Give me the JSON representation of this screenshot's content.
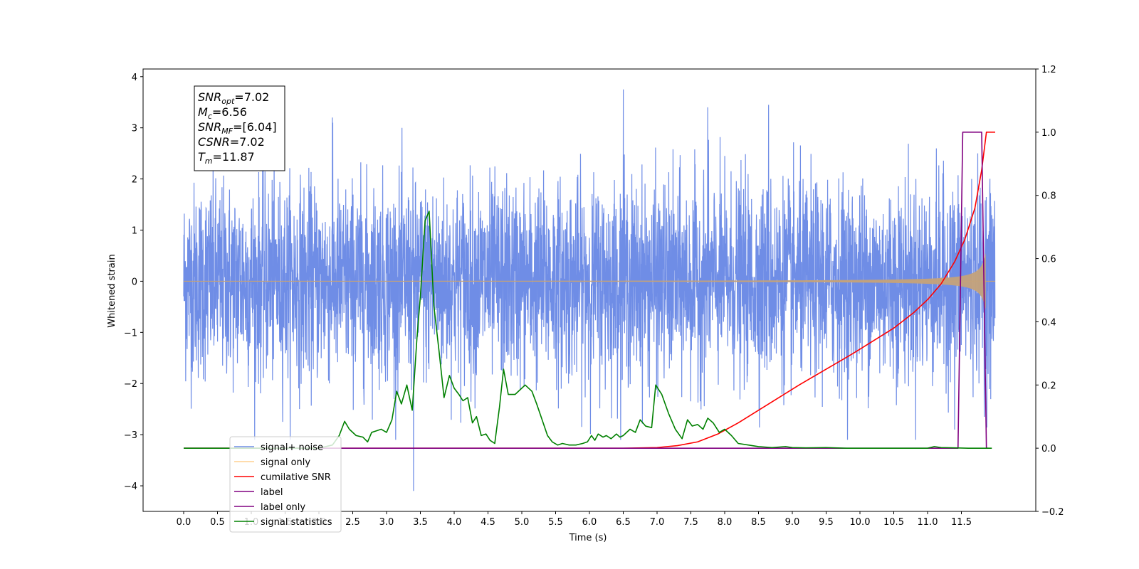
{
  "chart_data": {
    "type": "line",
    "xlabel": "Time (s)",
    "ylabel": "Whitened strain",
    "xlim": [
      -0.6,
      12.6
    ],
    "ylim": [
      -4.5,
      4.15
    ],
    "y2lim": [
      -0.2,
      1.2
    ],
    "x_ticks": [
      "0.0",
      "0.5",
      "1.0",
      "1.5",
      "2.0",
      "2.5",
      "3.0",
      "3.5",
      "4.0",
      "4.5",
      "5.0",
      "5.5",
      "6.0",
      "6.5",
      "7.0",
      "7.5",
      "8.0",
      "8.5",
      "9.0",
      "9.5",
      "10.0",
      "10.5",
      "11.0",
      "11.5"
    ],
    "y_ticks": [
      "4",
      "3",
      "2",
      "1",
      "0",
      "−1",
      "−2",
      "−3",
      "−4"
    ],
    "y2_ticks": [
      "1.2",
      "1.0",
      "0.8",
      "0.6",
      "0.4",
      "0.2",
      "0.0",
      "−0.2"
    ],
    "grid": false,
    "legend_position": "lower-left",
    "info_box": {
      "lines": [
        {
          "sym": "SNR",
          "sub": "opt",
          "rest": "=7.02"
        },
        {
          "sym": "M",
          "sub": "c",
          "rest": "=6.56"
        },
        {
          "sym": "SNR",
          "sub": "MF",
          "rest": "=[6.04]"
        },
        {
          "sym": "CSNR",
          "sub": "",
          "rest": "=7.02"
        },
        {
          "sym": "T",
          "sub": "m",
          "rest": "=11.87"
        }
      ]
    },
    "series": [
      {
        "name": "signal+ noise",
        "axis": "left",
        "color": "#6f8de6",
        "kind": "noise",
        "x_range": [
          0.0,
          12.0
        ],
        "sample_spacing": 0.003,
        "sigma": 0.95,
        "peaks": [
          [
            3.4,
            -4.1
          ],
          [
            6.5,
            3.75
          ],
          [
            8.65,
            3.45
          ],
          [
            2.2,
            3.2
          ],
          [
            7.75,
            3.4
          ],
          [
            11.4,
            -2.9
          ]
        ]
      },
      {
        "name": "signal only",
        "axis": "left",
        "color": "#c4a27a",
        "kind": "chirp",
        "x_range": [
          0.0,
          11.87
        ],
        "amplitude_end": 0.55
      },
      {
        "name": "cumilative SNR",
        "axis": "right",
        "color": "#ff0000",
        "x": [
          0.0,
          6.5,
          7.0,
          7.3,
          7.6,
          7.9,
          8.2,
          8.5,
          8.8,
          9.1,
          9.5,
          9.9,
          10.2,
          10.5,
          10.8,
          11.0,
          11.2,
          11.4,
          11.55,
          11.7,
          11.8,
          11.87,
          12.0
        ],
        "y": [
          0.0,
          0.0,
          0.002,
          0.008,
          0.02,
          0.045,
          0.08,
          0.12,
          0.16,
          0.2,
          0.25,
          0.3,
          0.34,
          0.38,
          0.43,
          0.47,
          0.52,
          0.59,
          0.66,
          0.76,
          0.88,
          1.0,
          1.0
        ]
      },
      {
        "name": "label",
        "axis": "right",
        "color": "#800080",
        "x": [
          0.0,
          11.45,
          11.52,
          11.8,
          11.87,
          11.9
        ],
        "y": [
          0.0,
          0.0,
          1.0,
          1.0,
          0.0,
          0.0
        ]
      },
      {
        "name": "label only",
        "axis": "right",
        "color": "#800080",
        "x": [],
        "y": []
      },
      {
        "name": "signal statistics",
        "axis": "right",
        "color": "#008000",
        "x": [
          0.0,
          2.0,
          2.2,
          2.3,
          2.38,
          2.45,
          2.55,
          2.65,
          2.72,
          2.78,
          2.85,
          2.92,
          3.0,
          3.08,
          3.15,
          3.22,
          3.3,
          3.38,
          3.45,
          3.5,
          3.57,
          3.63,
          3.7,
          3.78,
          3.85,
          3.93,
          4.0,
          4.07,
          4.13,
          4.2,
          4.27,
          4.33,
          4.4,
          4.47,
          4.53,
          4.6,
          4.67,
          4.73,
          4.8,
          4.9,
          5.0,
          5.05,
          5.15,
          5.22,
          5.3,
          5.38,
          5.45,
          5.53,
          5.6,
          5.7,
          5.8,
          5.9,
          5.97,
          6.03,
          6.08,
          6.13,
          6.2,
          6.25,
          6.32,
          6.4,
          6.45,
          6.5,
          6.6,
          6.68,
          6.75,
          6.83,
          6.92,
          6.98,
          7.07,
          7.17,
          7.27,
          7.37,
          7.45,
          7.52,
          7.6,
          7.68,
          7.75,
          7.83,
          7.92,
          8.0,
          8.1,
          8.2,
          8.35,
          8.5,
          8.7,
          8.9,
          9.0,
          9.2,
          9.5,
          9.8,
          10.0,
          10.5,
          11.0,
          11.1,
          11.2,
          11.4,
          11.6,
          11.8,
          11.95
        ],
        "y": [
          0.0,
          0.0,
          0.01,
          0.04,
          0.085,
          0.06,
          0.04,
          0.035,
          0.02,
          0.05,
          0.055,
          0.06,
          0.05,
          0.09,
          0.18,
          0.14,
          0.2,
          0.12,
          0.35,
          0.48,
          0.72,
          0.75,
          0.45,
          0.3,
          0.16,
          0.23,
          0.19,
          0.17,
          0.15,
          0.16,
          0.08,
          0.1,
          0.04,
          0.045,
          0.025,
          0.015,
          0.13,
          0.25,
          0.17,
          0.17,
          0.19,
          0.2,
          0.18,
          0.14,
          0.09,
          0.04,
          0.02,
          0.01,
          0.015,
          0.01,
          0.01,
          0.015,
          0.02,
          0.04,
          0.025,
          0.045,
          0.035,
          0.04,
          0.03,
          0.045,
          0.035,
          0.04,
          0.06,
          0.05,
          0.09,
          0.07,
          0.065,
          0.2,
          0.17,
          0.11,
          0.06,
          0.03,
          0.09,
          0.07,
          0.075,
          0.06,
          0.095,
          0.08,
          0.05,
          0.06,
          0.04,
          0.015,
          0.01,
          0.005,
          0.002,
          0.005,
          0.002,
          0.001,
          0.002,
          0.0,
          0.0,
          0.0,
          0.0,
          0.005,
          0.002,
          0.001,
          0.0,
          0.0,
          0.0
        ]
      }
    ],
    "legend_order": [
      "signal+ noise",
      "signal only",
      "cumilative SNR",
      "label",
      "label only",
      "signal statistics"
    ]
  }
}
